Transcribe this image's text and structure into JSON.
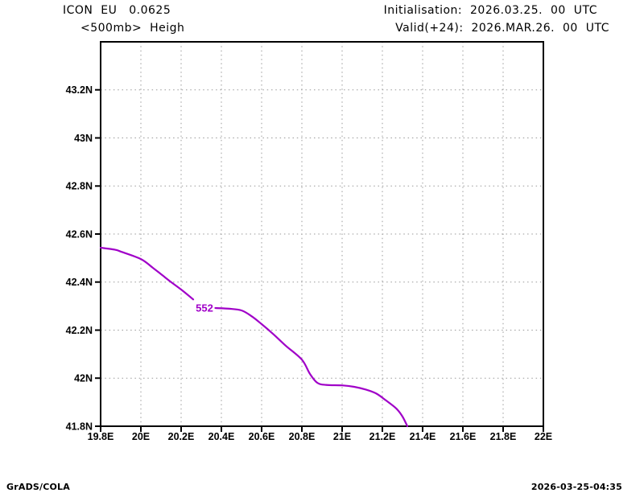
{
  "header": {
    "model_line": "ICON  EU   0.0625",
    "field_line": "<500mb>  Heigh",
    "init_line": "Initialisation:  2026.03.25.  00  UTC",
    "valid_line": "Valid(+24):  2026.MAR.26.  00  UTC"
  },
  "footer": {
    "credit": "GrADS/COLA",
    "timestamp": "2026-03-25-04:35"
  },
  "colors": {
    "contour": "#a000c8",
    "grid": "#999999",
    "frame": "#000000",
    "text": "#000000",
    "background": "#ffffff"
  },
  "chart_data": {
    "type": "line",
    "title": "<500mb> Heigh",
    "xlabel": "",
    "ylabel": "",
    "grid": "dotted",
    "legend": "none",
    "xlim": [
      19.8,
      22.0
    ],
    "ylim": [
      41.8,
      43.4
    ],
    "x_ticks": [
      {
        "v": 19.8,
        "label": "19.8E"
      },
      {
        "v": 20.0,
        "label": "20E"
      },
      {
        "v": 20.2,
        "label": "20.2E"
      },
      {
        "v": 20.4,
        "label": "20.4E"
      },
      {
        "v": 20.6,
        "label": "20.6E"
      },
      {
        "v": 20.8,
        "label": "20.8E"
      },
      {
        "v": 21.0,
        "label": "21E"
      },
      {
        "v": 21.2,
        "label": "21.2E"
      },
      {
        "v": 21.4,
        "label": "21.4E"
      },
      {
        "v": 21.6,
        "label": "21.6E"
      },
      {
        "v": 21.8,
        "label": "21.8E"
      },
      {
        "v": 22.0,
        "label": "22E"
      }
    ],
    "y_ticks": [
      {
        "v": 41.8,
        "label": "41.8N"
      },
      {
        "v": 42.0,
        "label": "42N"
      },
      {
        "v": 42.2,
        "label": "42.2N"
      },
      {
        "v": 42.4,
        "label": "42.4N"
      },
      {
        "v": 42.6,
        "label": "42.6N"
      },
      {
        "v": 42.8,
        "label": "42.8N"
      },
      {
        "v": 43.0,
        "label": "43N"
      },
      {
        "v": 43.2,
        "label": "43.2N"
      }
    ],
    "contours": [
      {
        "level": 552,
        "label": "552",
        "color": "#a000c8",
        "label_at": [
          20.316,
          42.292
        ],
        "segments": [
          [
            [
              19.8,
              42.543
            ],
            [
              19.87,
              42.535
            ],
            [
              19.9,
              42.527
            ],
            [
              20.0,
              42.496
            ],
            [
              20.06,
              42.459
            ],
            [
              20.1,
              42.433
            ],
            [
              20.15,
              42.4
            ],
            [
              20.2,
              42.369
            ],
            [
              20.26,
              42.328
            ]
          ],
          [
            [
              20.37,
              42.292
            ],
            [
              20.44,
              42.289
            ],
            [
              20.5,
              42.282
            ],
            [
              20.55,
              42.258
            ],
            [
              20.6,
              42.225
            ],
            [
              20.66,
              42.182
            ],
            [
              20.72,
              42.135
            ],
            [
              20.8,
              42.077
            ],
            [
              20.84,
              42.018
            ],
            [
              20.876,
              41.981
            ],
            [
              20.92,
              41.972
            ],
            [
              21.0,
              41.97
            ],
            [
              21.06,
              41.964
            ],
            [
              21.12,
              41.952
            ],
            [
              21.17,
              41.936
            ],
            [
              21.22,
              41.906
            ],
            [
              21.27,
              41.873
            ],
            [
              21.3,
              41.84
            ],
            [
              21.324,
              41.8
            ]
          ]
        ]
      }
    ]
  }
}
